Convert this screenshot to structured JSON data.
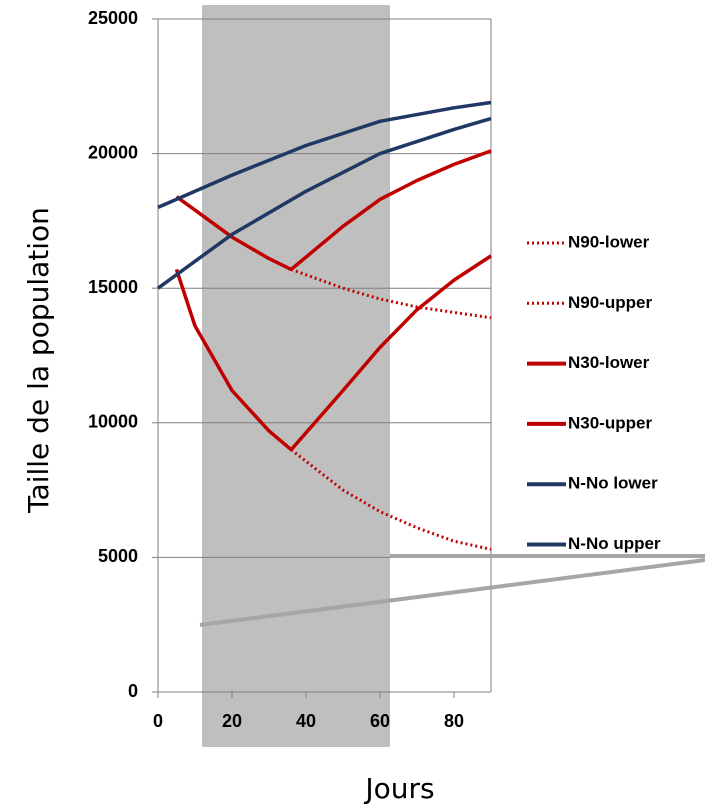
{
  "chart_data": {
    "type": "line",
    "x_label": "Jours",
    "y_label": "Taille de la population",
    "xlim": [
      0,
      90
    ],
    "xticks": [
      0,
      20,
      40,
      60,
      80
    ],
    "ylim": [
      0,
      25000
    ],
    "yticks": [
      0,
      5000,
      10000,
      15000,
      20000,
      25000
    ],
    "grid": true,
    "legend": "right",
    "series": [
      {
        "name": "N90-lower",
        "color": "#c00000",
        "style": "dotted",
        "x": [
          36,
          50,
          60,
          70,
          80,
          90
        ],
        "values": [
          9000,
          7500,
          6700,
          6100,
          5600,
          5300
        ]
      },
      {
        "name": "N90-upper",
        "color": "#c00000",
        "style": "dotted",
        "x": [
          36,
          50,
          60,
          70,
          80,
          90
        ],
        "values": [
          15700,
          15000,
          14600,
          14300,
          14100,
          13900
        ]
      },
      {
        "name": "N30-lower",
        "color": "#c00000",
        "style": "solid",
        "x": [
          5,
          10,
          20,
          30,
          36,
          50,
          60,
          70,
          80,
          90
        ],
        "values": [
          15700,
          13600,
          11200,
          9700,
          9000,
          11200,
          12800,
          14200,
          15300,
          16200
        ]
      },
      {
        "name": "N30-upper",
        "color": "#c00000",
        "style": "solid",
        "x": [
          5,
          10,
          20,
          30,
          36,
          50,
          60,
          70,
          80,
          90
        ],
        "values": [
          18400,
          17900,
          16900,
          16100,
          15700,
          17300,
          18300,
          19000,
          19600,
          20100
        ]
      },
      {
        "name": "N-No lower",
        "color": "#1f3864",
        "style": "solid",
        "x": [
          0,
          20,
          40,
          60,
          80,
          90
        ],
        "values": [
          15000,
          17000,
          18600,
          20000,
          20900,
          21300
        ]
      },
      {
        "name": "N-No upper",
        "color": "#1f3864",
        "style": "solid",
        "x": [
          0,
          20,
          40,
          60,
          80,
          90
        ],
        "values": [
          18000,
          19200,
          20300,
          21200,
          21700,
          21900
        ]
      }
    ]
  }
}
